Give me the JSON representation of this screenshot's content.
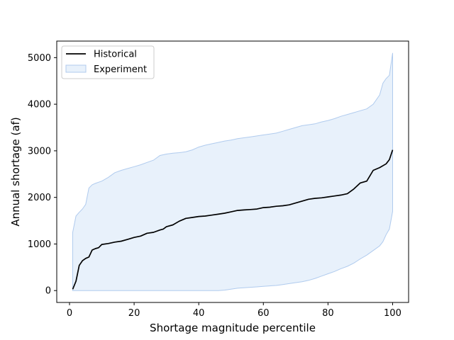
{
  "chart_data": {
    "type": "area",
    "title": "",
    "xlabel": "Shortage magnitude percentile",
    "ylabel": "Annual shortage (af)",
    "xlim": [
      -3.95,
      104.95
    ],
    "ylim": [
      -255,
      5355
    ],
    "xticks": [
      0,
      20,
      40,
      60,
      80,
      100
    ],
    "yticks": [
      0,
      1000,
      2000,
      3000,
      4000,
      5000
    ],
    "grid": false,
    "legend_position": "upper-left",
    "colors": {
      "historical": "#000000",
      "experiment_fill": "#cddff7",
      "experiment_edge": "#b0cbee",
      "axes": "#000000"
    },
    "series": [
      {
        "name": "Historical",
        "kind": "line",
        "x": [
          1,
          2,
          3,
          4,
          5,
          6,
          7,
          8,
          9,
          10,
          12,
          14,
          16,
          18,
          20,
          22,
          24,
          26,
          28,
          29,
          30,
          32,
          34,
          36,
          38,
          40,
          42,
          44,
          46,
          48,
          50,
          52,
          54,
          56,
          58,
          60,
          62,
          64,
          66,
          68,
          70,
          72,
          74,
          76,
          78,
          80,
          82,
          84,
          86,
          88,
          90,
          92,
          94,
          96,
          98,
          99,
          100
        ],
        "y": [
          30,
          200,
          540,
          640,
          690,
          720,
          870,
          900,
          920,
          990,
          1010,
          1040,
          1060,
          1100,
          1140,
          1170,
          1230,
          1250,
          1300,
          1320,
          1370,
          1410,
          1490,
          1550,
          1570,
          1590,
          1600,
          1620,
          1640,
          1660,
          1690,
          1720,
          1730,
          1740,
          1750,
          1780,
          1790,
          1810,
          1820,
          1840,
          1880,
          1920,
          1960,
          1980,
          1990,
          2010,
          2030,
          2050,
          2080,
          2180,
          2310,
          2350,
          2580,
          2640,
          2720,
          2810,
          3020
        ]
      },
      {
        "name": "Experiment",
        "kind": "band",
        "x": [
          1,
          2,
          3,
          4,
          5,
          6,
          7,
          8,
          10,
          12,
          14,
          16,
          18,
          20,
          22,
          24,
          26,
          28,
          30,
          32,
          34,
          36,
          38,
          40,
          42,
          44,
          46,
          48,
          50,
          52,
          54,
          56,
          58,
          60,
          62,
          64,
          66,
          68,
          70,
          72,
          74,
          76,
          78,
          80,
          82,
          84,
          86,
          88,
          90,
          92,
          94,
          96,
          97,
          98,
          99,
          100
        ],
        "upper": [
          1250,
          1600,
          1680,
          1750,
          1850,
          2200,
          2270,
          2300,
          2350,
          2430,
          2530,
          2580,
          2620,
          2660,
          2700,
          2750,
          2800,
          2900,
          2930,
          2950,
          2960,
          2980,
          3020,
          3080,
          3120,
          3150,
          3180,
          3210,
          3230,
          3260,
          3280,
          3300,
          3320,
          3340,
          3360,
          3380,
          3420,
          3460,
          3500,
          3540,
          3560,
          3580,
          3620,
          3650,
          3690,
          3740,
          3780,
          3820,
          3860,
          3900,
          4000,
          4200,
          4450,
          4550,
          4620,
          5100
        ],
        "lower": [
          0,
          0,
          0,
          0,
          0,
          0,
          0,
          0,
          0,
          0,
          0,
          0,
          0,
          0,
          0,
          0,
          0,
          0,
          0,
          0,
          0,
          0,
          0,
          0,
          0,
          0,
          0,
          10,
          30,
          50,
          60,
          70,
          80,
          90,
          100,
          110,
          130,
          150,
          170,
          190,
          220,
          260,
          310,
          360,
          410,
          470,
          520,
          590,
          680,
          760,
          860,
          960,
          1050,
          1200,
          1320,
          1700
        ]
      }
    ]
  }
}
